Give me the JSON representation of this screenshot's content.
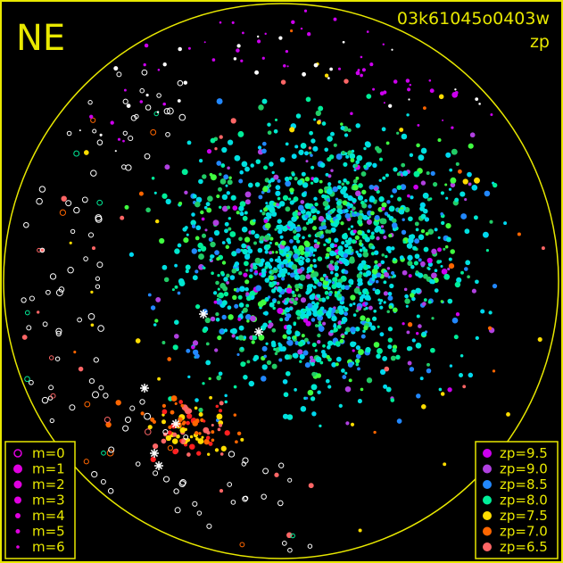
{
  "chart_data": {
    "type": "scatter",
    "title": "03k61045o0403w",
    "subtitle": "zp",
    "orientation_label": "NE",
    "frame_color": "#e8e800",
    "background": "#000000",
    "marker_size_legend": [
      {
        "label": "m=0",
        "m": 0,
        "style": "open"
      },
      {
        "label": "m=1",
        "m": 1,
        "style": "filled"
      },
      {
        "label": "m=2",
        "m": 2,
        "style": "filled"
      },
      {
        "label": "m=3",
        "m": 3,
        "style": "filled"
      },
      {
        "label": "m=4",
        "m": 4,
        "style": "filled"
      },
      {
        "label": "m=5",
        "m": 5,
        "style": "filled"
      },
      {
        "label": "m=6",
        "m": 6,
        "style": "filled"
      }
    ],
    "marker_size_legend_color": "#e000e0",
    "color_legend": [
      {
        "label": "zp=9.5",
        "zp": 9.5,
        "color": "#cc00ee"
      },
      {
        "label": "zp=9.0",
        "zp": 9.0,
        "color": "#b040e0"
      },
      {
        "label": "zp=8.5",
        "zp": 8.5,
        "color": "#2288ff"
      },
      {
        "label": "zp=8.0",
        "zp": 8.0,
        "color": "#00ee99"
      },
      {
        "label": "zp=7.5",
        "zp": 7.5,
        "color": "#ffdd00"
      },
      {
        "label": "zp=7.0",
        "zp": 7.0,
        "color": "#ff6600"
      },
      {
        "label": "zp=6.5",
        "zp": 6.5,
        "color": "#ff6666"
      }
    ]
  }
}
